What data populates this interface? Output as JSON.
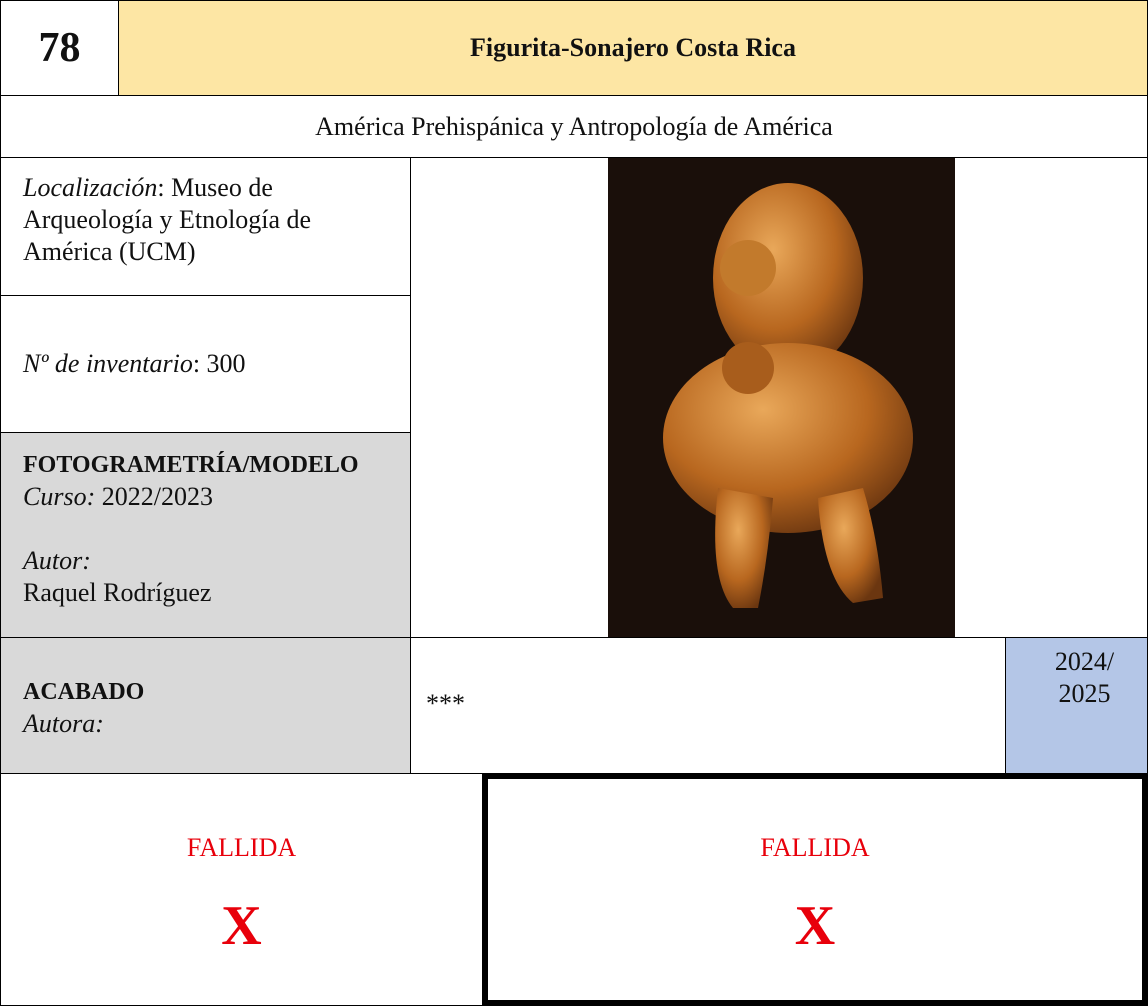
{
  "header": {
    "number": "78",
    "title": "Figurita-Sonajero Costa Rica"
  },
  "subtitle": "América Prehispánica y Antropología de América",
  "location": {
    "label": "Localización",
    "value": ": Museo de Arqueología y Etnología de América (UCM)"
  },
  "inventory": {
    "label": "Nº de inventario",
    "value": ": 300"
  },
  "photogrammetry": {
    "heading": "FOTOGRAMETRÍA/MODELO",
    "course_label": "Curso:",
    "course": "2022/2023",
    "author_label": "Autor:",
    "author": "Raquel Rodríguez"
  },
  "finish": {
    "heading": "ACABADO",
    "author_label": "Autora:",
    "author": "***",
    "year": "2024/ 2025"
  },
  "results": [
    {
      "status": "FALLIDA",
      "mark": "X"
    },
    {
      "status": "FALLIDA",
      "mark": "X"
    }
  ]
}
